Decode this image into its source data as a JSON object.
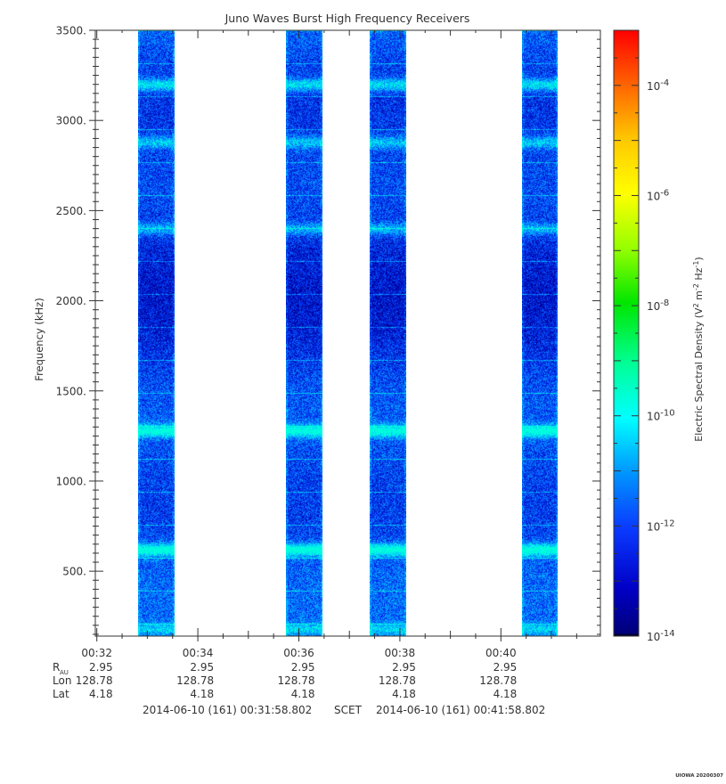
{
  "chart_data": {
    "type": "heatmap",
    "title": "Juno Waves Burst High Frequency Receivers",
    "ylabel": "Frequency (kHz)",
    "ylim": [
      140,
      3500
    ],
    "yticks": [
      {
        "value": 500,
        "label": "500."
      },
      {
        "value": 1000,
        "label": "1000."
      },
      {
        "value": 1500,
        "label": "1500."
      },
      {
        "value": 2000,
        "label": "2000."
      },
      {
        "value": 2500,
        "label": "2500."
      },
      {
        "value": 3000,
        "label": "3000."
      },
      {
        "value": 3500,
        "label": "3500."
      }
    ],
    "xlim_minutes": [
      31.97,
      41.97
    ],
    "xticks": [
      {
        "minute": 32,
        "label": "00:32"
      },
      {
        "minute": 34,
        "label": "00:34"
      },
      {
        "minute": 36,
        "label": "00:36"
      },
      {
        "minute": 38,
        "label": "00:38"
      },
      {
        "minute": 40,
        "label": "00:40"
      }
    ],
    "bursts_minutes": [
      [
        32.82,
        33.54
      ],
      [
        35.75,
        36.47
      ],
      [
        37.41,
        38.13
      ],
      [
        40.41,
        41.13
      ]
    ],
    "emission_bands_khz": [
      {
        "center": 3200,
        "level": 0.55
      },
      {
        "center": 2880,
        "level": 0.45
      },
      {
        "center": 2400,
        "level": 0.4
      },
      {
        "center": 1280,
        "level": 0.7
      },
      {
        "center": 620,
        "level": 0.75
      },
      {
        "center": 180,
        "level": 0.4
      }
    ],
    "colorbar": {
      "label": "Electric Spectral Density (V",
      "label_sup1": "2",
      "label_mid": " m",
      "label_sup2": "-2",
      "label_mid2": " Hz",
      "label_sup3": "-1",
      "label_end": ")",
      "scale": "log",
      "range": [
        1e-14,
        0.001
      ],
      "ticks": [
        {
          "exp": -4,
          "base": "10",
          "sup": "-4"
        },
        {
          "exp": -6,
          "base": "10",
          "sup": "-6"
        },
        {
          "exp": -8,
          "base": "10",
          "sup": "-8"
        },
        {
          "exp": -10,
          "base": "10",
          "sup": "-10"
        },
        {
          "exp": -12,
          "base": "10",
          "sup": "-12"
        },
        {
          "exp": -14,
          "base": "10",
          "sup": "-14"
        }
      ]
    },
    "ephemeris": {
      "rows": [
        {
          "name": "R",
          "sub": "AU",
          "values": [
            "2.95",
            "2.95",
            "2.95",
            "2.95",
            "2.95"
          ]
        },
        {
          "name": "Lon",
          "sub": "",
          "values": [
            "128.78",
            "128.78",
            "128.78",
            "128.78",
            "128.78"
          ]
        },
        {
          "name": "Lat",
          "sub": "",
          "values": [
            "4.18",
            "4.18",
            "4.18",
            "4.18",
            "4.18"
          ]
        }
      ]
    },
    "time_range": {
      "start": "2014-06-10 (161) 00:31:58.802",
      "label": "SCET",
      "end": "2014-06-10 (161) 00:41:58.802"
    }
  },
  "footer_tag": "UIOWA 20200307"
}
